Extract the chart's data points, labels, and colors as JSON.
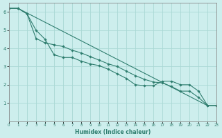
{
  "xlabel": "Humidex (Indice chaleur)",
  "ylabel": "",
  "background_color": "#cdeeed",
  "grid_color": "#aad8d5",
  "line_color": "#2e7d6e",
  "xlim": [
    0,
    23
  ],
  "ylim": [
    0,
    6.5
  ],
  "x_ticks": [
    0,
    1,
    2,
    3,
    4,
    5,
    6,
    7,
    8,
    9,
    10,
    11,
    12,
    13,
    14,
    15,
    16,
    17,
    18,
    19,
    20,
    21,
    22,
    23
  ],
  "y_ticks": [
    1,
    2,
    3,
    4,
    5,
    6
  ],
  "line1_x": [
    0,
    1,
    2,
    3,
    4,
    5,
    6,
    7,
    8,
    9,
    10,
    11,
    12,
    13,
    14,
    15,
    16,
    17,
    18,
    19,
    20,
    21,
    22,
    23
  ],
  "line1_y": [
    6.2,
    6.2,
    5.9,
    5.0,
    4.5,
    3.65,
    3.5,
    3.5,
    3.3,
    3.15,
    3.05,
    2.85,
    2.6,
    2.35,
    2.0,
    1.95,
    1.95,
    2.2,
    2.2,
    2.0,
    2.0,
    1.65,
    0.85,
    0.85
  ],
  "line2_x": [
    0,
    1,
    2,
    3,
    4,
    5,
    6,
    7,
    8,
    9,
    10,
    11,
    12,
    13,
    14,
    15,
    16,
    17,
    18,
    19,
    20,
    21,
    22,
    23
  ],
  "line2_y": [
    6.2,
    6.2,
    5.9,
    4.55,
    4.3,
    4.2,
    4.1,
    3.9,
    3.75,
    3.55,
    3.35,
    3.15,
    3.0,
    2.75,
    2.5,
    2.3,
    2.15,
    2.1,
    1.9,
    1.65,
    1.65,
    1.3,
    0.85,
    0.85
  ],
  "line3_x": [
    0,
    1,
    22,
    23
  ],
  "line3_y": [
    6.2,
    6.2,
    0.85,
    0.85
  ]
}
